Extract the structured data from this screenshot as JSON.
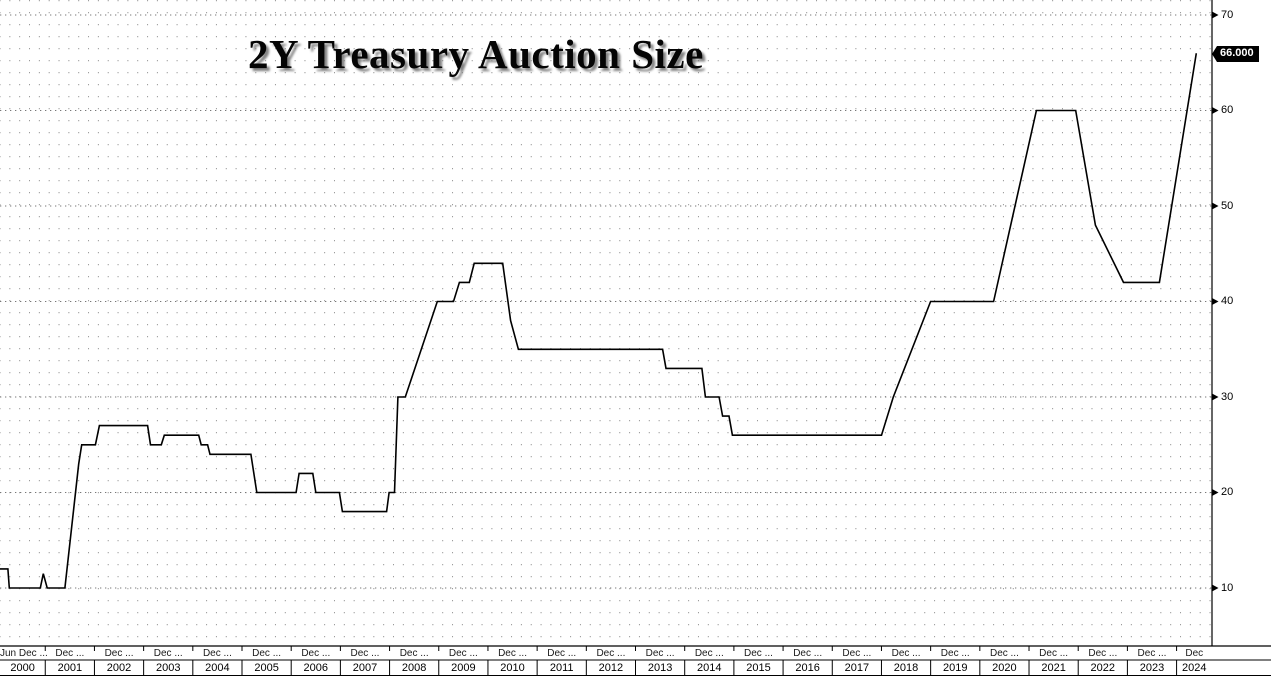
{
  "title": "2Y Treasury Auction Size",
  "last_value_label": "66.000",
  "colors": {
    "background": "#ffffff",
    "line": "#000000",
    "grid_dots": "#9a9a9a",
    "grid_tick_lines": "#777777",
    "axis": "#000000",
    "badge_bg": "#000000",
    "badge_text": "#ffffff"
  },
  "axes": {
    "y_tick_labels": [
      "10",
      "20",
      "30",
      "40",
      "50",
      "60",
      "70"
    ],
    "x_year_labels": [
      "2000",
      "2001",
      "2002",
      "2003",
      "2004",
      "2005",
      "2006",
      "2007",
      "2008",
      "2009",
      "2010",
      "2011",
      "2012",
      "2013",
      "2014",
      "2015",
      "2016",
      "2017",
      "2018",
      "2019",
      "2020",
      "2021",
      "2022",
      "2023",
      "2024"
    ],
    "x_minor_labels": [
      "Jun Dec ...",
      "Dec ...",
      "Dec ...",
      "Dec ...",
      "Dec ...",
      "Dec ...",
      "Dec ...",
      "Dec ...",
      "Dec ...",
      "Dec ...",
      "Dec ...",
      "Dec ...",
      "Dec ...",
      "Dec ...",
      "Dec ...",
      "Dec ...",
      "Dec ...",
      "Dec ...",
      "Dec ...",
      "Dec ...",
      "Dec ...",
      "Dec ...",
      "Dec ...",
      "Dec ...",
      "Dec"
    ]
  },
  "chart_data": {
    "type": "line",
    "title": "2Y Treasury Auction Size",
    "x_unit": "decimal_year",
    "xlim": [
      2000.08,
      2024.72
    ],
    "ylim": [
      10,
      70
    ],
    "y_ticks": [
      10,
      20,
      30,
      40,
      50,
      60,
      70
    ],
    "grid": "dotted",
    "legend_position": "none",
    "last_value": 66.0,
    "series": [
      {
        "name": "2Y Treasury auction size ($bn)",
        "points": [
          [
            2000.08,
            12
          ],
          [
            2000.24,
            12
          ],
          [
            2000.27,
            10
          ],
          [
            2000.9,
            10
          ],
          [
            2000.96,
            11.5
          ],
          [
            2001.04,
            10
          ],
          [
            2001.4,
            10
          ],
          [
            2001.68,
            23
          ],
          [
            2001.74,
            25
          ],
          [
            2002.02,
            25
          ],
          [
            2002.1,
            27
          ],
          [
            2003.08,
            27
          ],
          [
            2003.14,
            25
          ],
          [
            2003.36,
            25
          ],
          [
            2003.42,
            26
          ],
          [
            2004.12,
            26
          ],
          [
            2004.17,
            25
          ],
          [
            2004.3,
            25
          ],
          [
            2004.35,
            24
          ],
          [
            2005.18,
            24
          ],
          [
            2005.3,
            20
          ],
          [
            2006.1,
            20
          ],
          [
            2006.16,
            22
          ],
          [
            2006.44,
            22
          ],
          [
            2006.5,
            20
          ],
          [
            2006.98,
            20
          ],
          [
            2007.04,
            18
          ],
          [
            2007.94,
            18
          ],
          [
            2007.99,
            20
          ],
          [
            2008.1,
            20
          ],
          [
            2008.17,
            30
          ],
          [
            2008.32,
            30
          ],
          [
            2008.97,
            40
          ],
          [
            2009.3,
            40
          ],
          [
            2009.42,
            42
          ],
          [
            2009.62,
            42
          ],
          [
            2009.72,
            44
          ],
          [
            2010.3,
            44
          ],
          [
            2010.46,
            38
          ],
          [
            2010.62,
            35
          ],
          [
            2013.55,
            35
          ],
          [
            2013.62,
            33
          ],
          [
            2014.35,
            33
          ],
          [
            2014.42,
            30
          ],
          [
            2014.7,
            30
          ],
          [
            2014.77,
            28
          ],
          [
            2014.9,
            28
          ],
          [
            2014.97,
            26
          ],
          [
            2018.0,
            26
          ],
          [
            2018.24,
            30
          ],
          [
            2019.0,
            40
          ],
          [
            2020.28,
            40
          ],
          [
            2021.15,
            60
          ],
          [
            2021.95,
            60
          ],
          [
            2022.35,
            48
          ],
          [
            2022.92,
            42
          ],
          [
            2023.65,
            42
          ],
          [
            2024.4,
            66
          ]
        ]
      }
    ]
  }
}
